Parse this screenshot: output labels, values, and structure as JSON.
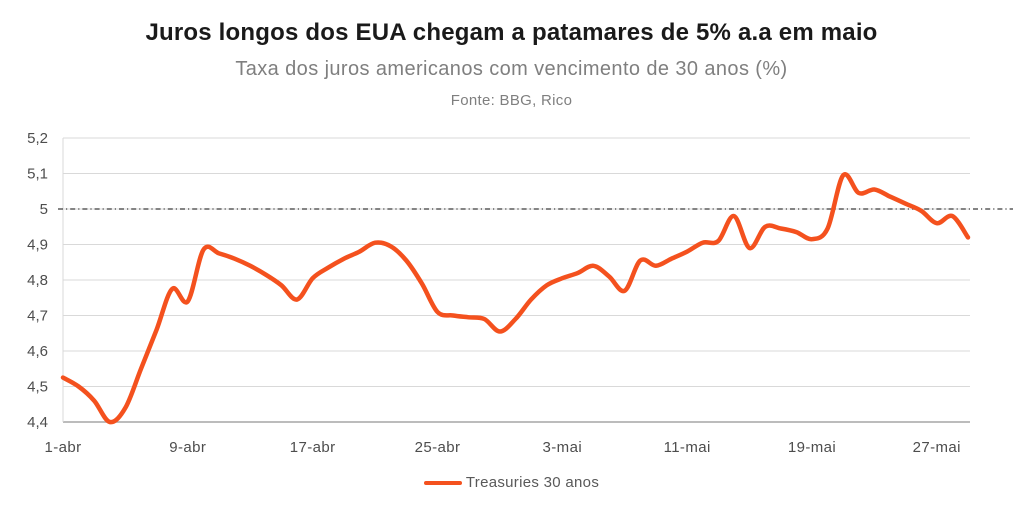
{
  "header": {
    "title": "Juros longos dos EUA chegam a patamares de 5% a.a em maio",
    "subtitle": "Taxa dos juros americanos com vencimento de 30 anos (%)",
    "source": "Fonte: BBG, Rico"
  },
  "colors": {
    "background": "#FFFFFF",
    "title_text": "#1A1A1A",
    "subtitle_text": "#7F7F7F",
    "tick_text": "#4D4D4D",
    "gridline": "#D9D9D9",
    "axis_line": "#A6A6A6",
    "reference_line": "#3A3A3A",
    "accent_orange": "#F4511E"
  },
  "chart_data": {
    "type": "line",
    "title": "Juros longos dos EUA chegam a patamares de 5% a.a em maio",
    "subtitle": "Taxa dos juros americanos com vencimento de 30 anos (%)",
    "source": "Fonte: BBG, Rico",
    "xlabel": "",
    "ylabel": "",
    "ylim": [
      4.4,
      5.2
    ],
    "y_tick_step": 0.1,
    "y_tick_labels": [
      "4,4",
      "4,5",
      "4,6",
      "4,7",
      "4,8",
      "4,9",
      "5",
      "5,1",
      "5,2"
    ],
    "x_tick_labels": [
      "1-abr",
      "9-abr",
      "17-abr",
      "25-abr",
      "3-mai",
      "11-mai",
      "19-mai",
      "27-mai"
    ],
    "grid": "horizontal",
    "legend_position": "bottom-center",
    "reference_line": {
      "y": 5.0,
      "style": "dash-dot",
      "color": "#3A3A3A"
    },
    "series": [
      {
        "name": "Treasuries 30 anos",
        "color": "#F4511E",
        "x": [
          "1-abr",
          "2-abr",
          "3-abr",
          "4-abr",
          "5-abr",
          "6-abr",
          "7-abr",
          "8-abr",
          "9-abr",
          "10-abr",
          "11-abr",
          "12-abr",
          "13-abr",
          "14-abr",
          "15-abr",
          "16-abr",
          "17-abr",
          "18-abr",
          "19-abr",
          "20-abr",
          "21-abr",
          "22-abr",
          "23-abr",
          "24-abr",
          "25-abr",
          "26-abr",
          "27-abr",
          "28-abr",
          "29-abr",
          "30-abr",
          "1-mai",
          "2-mai",
          "3-mai",
          "4-mai",
          "5-mai",
          "6-mai",
          "7-mai",
          "8-mai",
          "9-mai",
          "10-mai",
          "11-mai",
          "12-mai",
          "13-mai",
          "14-mai",
          "15-mai",
          "16-mai",
          "17-mai",
          "18-mai",
          "19-mai",
          "20-mai",
          "21-mai",
          "22-mai",
          "23-mai",
          "24-mai",
          "25-mai",
          "26-mai",
          "27-mai",
          "28-mai",
          "29-mai"
        ],
        "values": [
          4.525,
          4.5,
          4.46,
          4.4,
          4.44,
          4.55,
          4.66,
          4.775,
          4.74,
          4.885,
          4.875,
          4.86,
          4.84,
          4.815,
          4.785,
          4.745,
          4.805,
          4.835,
          4.86,
          4.88,
          4.905,
          4.895,
          4.855,
          4.79,
          4.71,
          4.7,
          4.695,
          4.69,
          4.655,
          4.69,
          4.745,
          4.785,
          4.805,
          4.82,
          4.84,
          4.81,
          4.77,
          4.855,
          4.84,
          4.86,
          4.88,
          4.905,
          4.91,
          4.98,
          4.89,
          4.95,
          4.945,
          4.935,
          4.915,
          4.945,
          5.095,
          5.045,
          5.055,
          5.035,
          5.015,
          4.995,
          4.96,
          4.98,
          4.92
        ]
      }
    ]
  },
  "legend": {
    "label": "Treasuries 30 anos"
  }
}
